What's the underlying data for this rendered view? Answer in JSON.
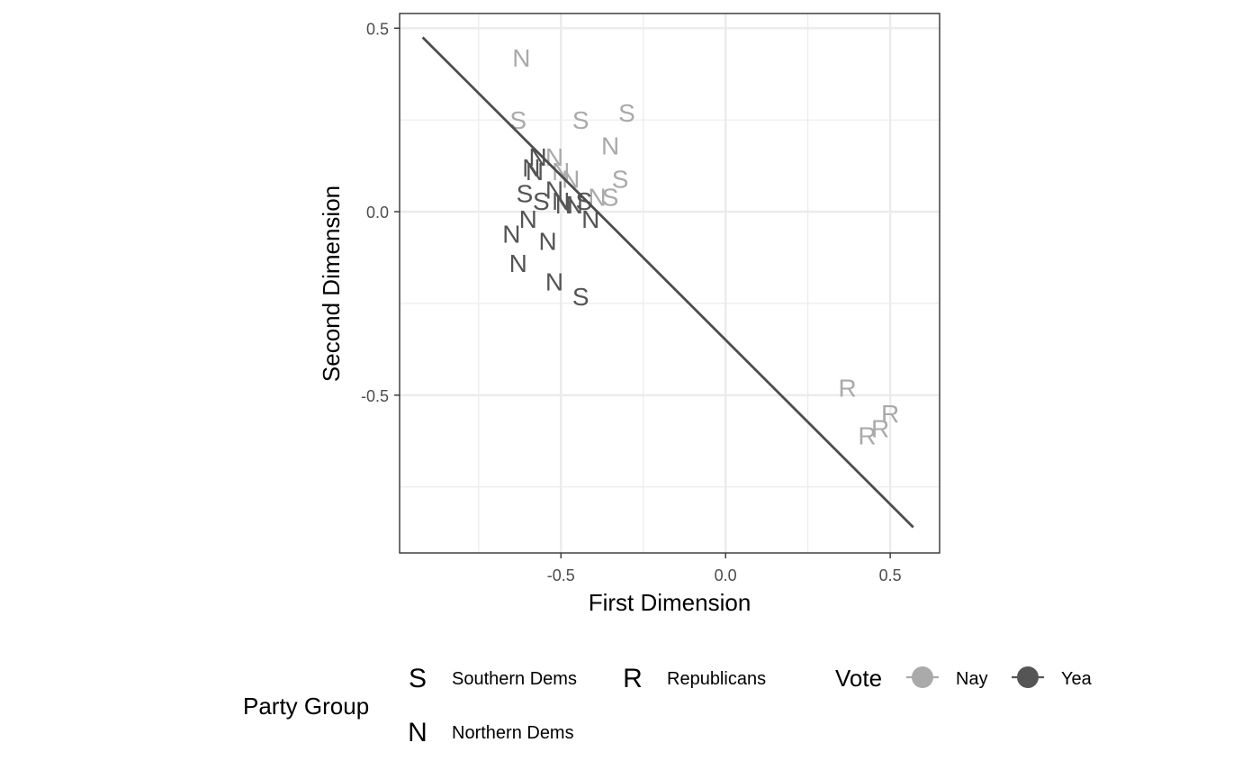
{
  "chart_data": {
    "type": "scatter",
    "title": "",
    "xlabel": "First Dimension",
    "ylabel": "Second Dimension",
    "xlim": [
      -0.99,
      0.65
    ],
    "ylim": [
      -0.93,
      0.54
    ],
    "x_ticks": [
      -0.5,
      0.0,
      0.5
    ],
    "x_tick_labels": [
      "-0.5",
      "0.0",
      "0.5"
    ],
    "y_ticks": [
      -0.5,
      0.0,
      0.5
    ],
    "y_tick_labels": [
      "-0.5",
      "0.0",
      "0.5"
    ],
    "grid": true,
    "cutting_line": {
      "x": [
        -0.92,
        0.57
      ],
      "y": [
        0.475,
        -0.86
      ]
    },
    "legend_placement": "bottom",
    "colors": {
      "Nay": "#aaaaaa",
      "Yea": "#555555",
      "line": "#4d4d4d",
      "grid": "#ebebeb",
      "border": "#333333"
    },
    "points": [
      {
        "x": -0.62,
        "y": 0.42,
        "label": "N",
        "vote": "Nay"
      },
      {
        "x": -0.63,
        "y": 0.25,
        "label": "S",
        "vote": "Nay"
      },
      {
        "x": -0.44,
        "y": 0.25,
        "label": "S",
        "vote": "Nay"
      },
      {
        "x": -0.3,
        "y": 0.27,
        "label": "S",
        "vote": "Nay"
      },
      {
        "x": -0.35,
        "y": 0.18,
        "label": "N",
        "vote": "Nay"
      },
      {
        "x": -0.32,
        "y": 0.09,
        "label": "S",
        "vote": "Nay"
      },
      {
        "x": -0.52,
        "y": 0.15,
        "label": "N",
        "vote": "Nay"
      },
      {
        "x": -0.5,
        "y": 0.11,
        "label": "N",
        "vote": "Nay"
      },
      {
        "x": -0.47,
        "y": 0.09,
        "label": "N",
        "vote": "Nay"
      },
      {
        "x": -0.39,
        "y": 0.04,
        "label": "N",
        "vote": "Nay"
      },
      {
        "x": -0.35,
        "y": 0.04,
        "label": "S",
        "vote": "Nay"
      },
      {
        "x": -0.57,
        "y": 0.15,
        "label": "N",
        "vote": "Yea"
      },
      {
        "x": -0.59,
        "y": 0.12,
        "label": "N",
        "vote": "Yea"
      },
      {
        "x": -0.58,
        "y": 0.11,
        "label": "N",
        "vote": "Yea"
      },
      {
        "x": -0.61,
        "y": 0.05,
        "label": "S",
        "vote": "Yea"
      },
      {
        "x": -0.56,
        "y": 0.03,
        "label": "S",
        "vote": "Yea"
      },
      {
        "x": -0.52,
        "y": 0.06,
        "label": "N",
        "vote": "Yea"
      },
      {
        "x": -0.5,
        "y": 0.03,
        "label": "N",
        "vote": "Yea"
      },
      {
        "x": -0.49,
        "y": 0.02,
        "label": "N",
        "vote": "Yea"
      },
      {
        "x": -0.46,
        "y": 0.02,
        "label": "N",
        "vote": "Yea"
      },
      {
        "x": -0.43,
        "y": 0.03,
        "label": "S",
        "vote": "Yea"
      },
      {
        "x": -0.41,
        "y": -0.02,
        "label": "N",
        "vote": "Yea"
      },
      {
        "x": -0.6,
        "y": -0.02,
        "label": "N",
        "vote": "Yea"
      },
      {
        "x": -0.65,
        "y": -0.06,
        "label": "N",
        "vote": "Yea"
      },
      {
        "x": -0.54,
        "y": -0.08,
        "label": "N",
        "vote": "Yea"
      },
      {
        "x": -0.63,
        "y": -0.14,
        "label": "N",
        "vote": "Yea"
      },
      {
        "x": -0.52,
        "y": -0.19,
        "label": "N",
        "vote": "Yea"
      },
      {
        "x": -0.44,
        "y": -0.23,
        "label": "S",
        "vote": "Yea"
      },
      {
        "x": 0.37,
        "y": -0.48,
        "label": "R",
        "vote": "Nay"
      },
      {
        "x": 0.5,
        "y": -0.55,
        "label": "R",
        "vote": "Nay"
      },
      {
        "x": 0.47,
        "y": -0.59,
        "label": "R",
        "vote": "Nay"
      },
      {
        "x": 0.43,
        "y": -0.61,
        "label": "R",
        "vote": "Nay"
      }
    ]
  },
  "legend": {
    "party": {
      "title": "Party Group",
      "items": [
        {
          "symbol": "S",
          "label": "Southern Dems"
        },
        {
          "symbol": "R",
          "label": "Republicans"
        },
        {
          "symbol": "N",
          "label": "Northern Dems"
        }
      ]
    },
    "vote": {
      "title": "Vote",
      "items": [
        {
          "label": "Nay",
          "color": "#aaaaaa"
        },
        {
          "label": "Yea",
          "color": "#555555"
        }
      ]
    }
  }
}
